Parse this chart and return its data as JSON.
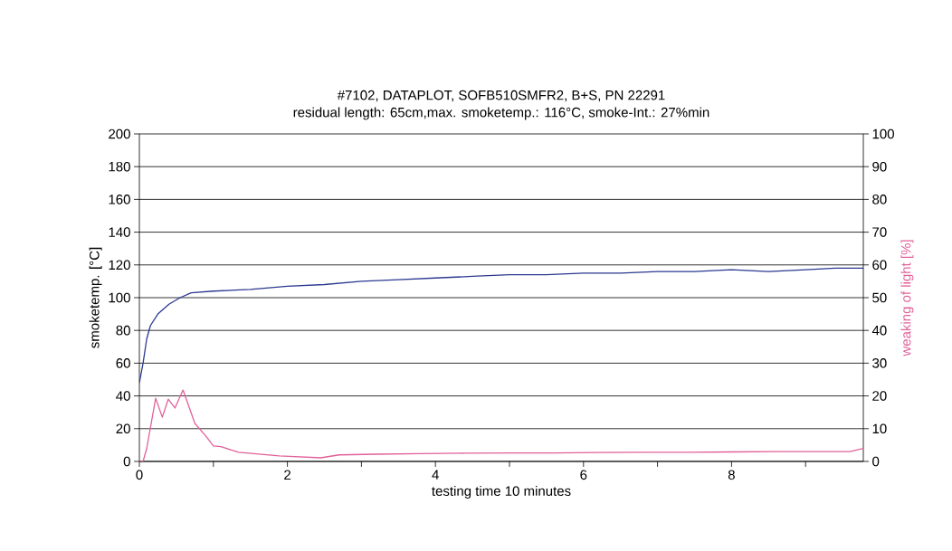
{
  "chart_data": {
    "type": "line",
    "title": "#7102, DATAPLOT, SOFB510SMFR2, B+S, PN 22291",
    "subtitle": "residual length: 65cm,max. smoketemp.: 116°C, smoke-Int.: 27%min",
    "xlabel": "testing time 10 minutes",
    "ylabel": "smoketemp. [°C]",
    "y2label": "weaking of light [%]",
    "xlim": [
      0,
      9.78
    ],
    "xticks": [
      0,
      {
        "value": 1,
        "label": null
      },
      2,
      {
        "value": 3,
        "label": null
      },
      4,
      {
        "value": 5,
        "label": null
      },
      6,
      {
        "value": 7,
        "label": null
      },
      8,
      {
        "value": 9,
        "label": null
      }
    ],
    "ylim": [
      0,
      200
    ],
    "yticks": [
      0,
      20,
      40,
      60,
      80,
      100,
      120,
      140,
      160,
      180,
      200
    ],
    "y2lim": [
      0,
      100
    ],
    "y2ticks": [
      0,
      10,
      20,
      30,
      40,
      50,
      60,
      70,
      80,
      90,
      100
    ],
    "grid": "y",
    "marker": "none",
    "line_style": "solid",
    "series": [
      {
        "color": "#2b3990",
        "x": [
          0,
          0.05,
          0.1,
          0.15,
          0.25,
          0.4,
          0.55,
          0.7,
          1,
          1.5,
          2,
          2.5,
          3,
          3.5,
          4,
          4.5,
          5,
          5.5,
          6,
          6.5,
          7,
          7.5,
          8,
          8.5,
          9,
          9.4,
          9.78
        ],
        "values": [
          48,
          60,
          75,
          83,
          90,
          96,
          100,
          103,
          104,
          105,
          107,
          108,
          110,
          111,
          112,
          113,
          114,
          114,
          115,
          115,
          116,
          116,
          117,
          116,
          117,
          118,
          118
        ]
      },
      {
        "color": "#e0609a",
        "axis": "y2",
        "x": [
          0,
          0.05,
          0.1,
          0.22,
          0.31,
          0.39,
          0.48,
          0.59,
          0.75,
          0.9,
          1.0,
          1.1,
          1.34,
          1.89,
          2.45,
          2.7,
          3.2,
          3.8,
          4.4,
          5,
          5.6,
          6.2,
          6.8,
          7.4,
          8,
          8.6,
          9.2,
          9.6,
          9.78
        ],
        "values": [
          0,
          0,
          4,
          19.3,
          13.5,
          19,
          16.3,
          21.8,
          11.6,
          7.7,
          4.7,
          4.5,
          2.8,
          1.7,
          1.1,
          2,
          2.2,
          2.4,
          2.5,
          2.6,
          2.6,
          2.7,
          2.8,
          2.8,
          2.9,
          3,
          3,
          3,
          4
        ]
      }
    ]
  }
}
